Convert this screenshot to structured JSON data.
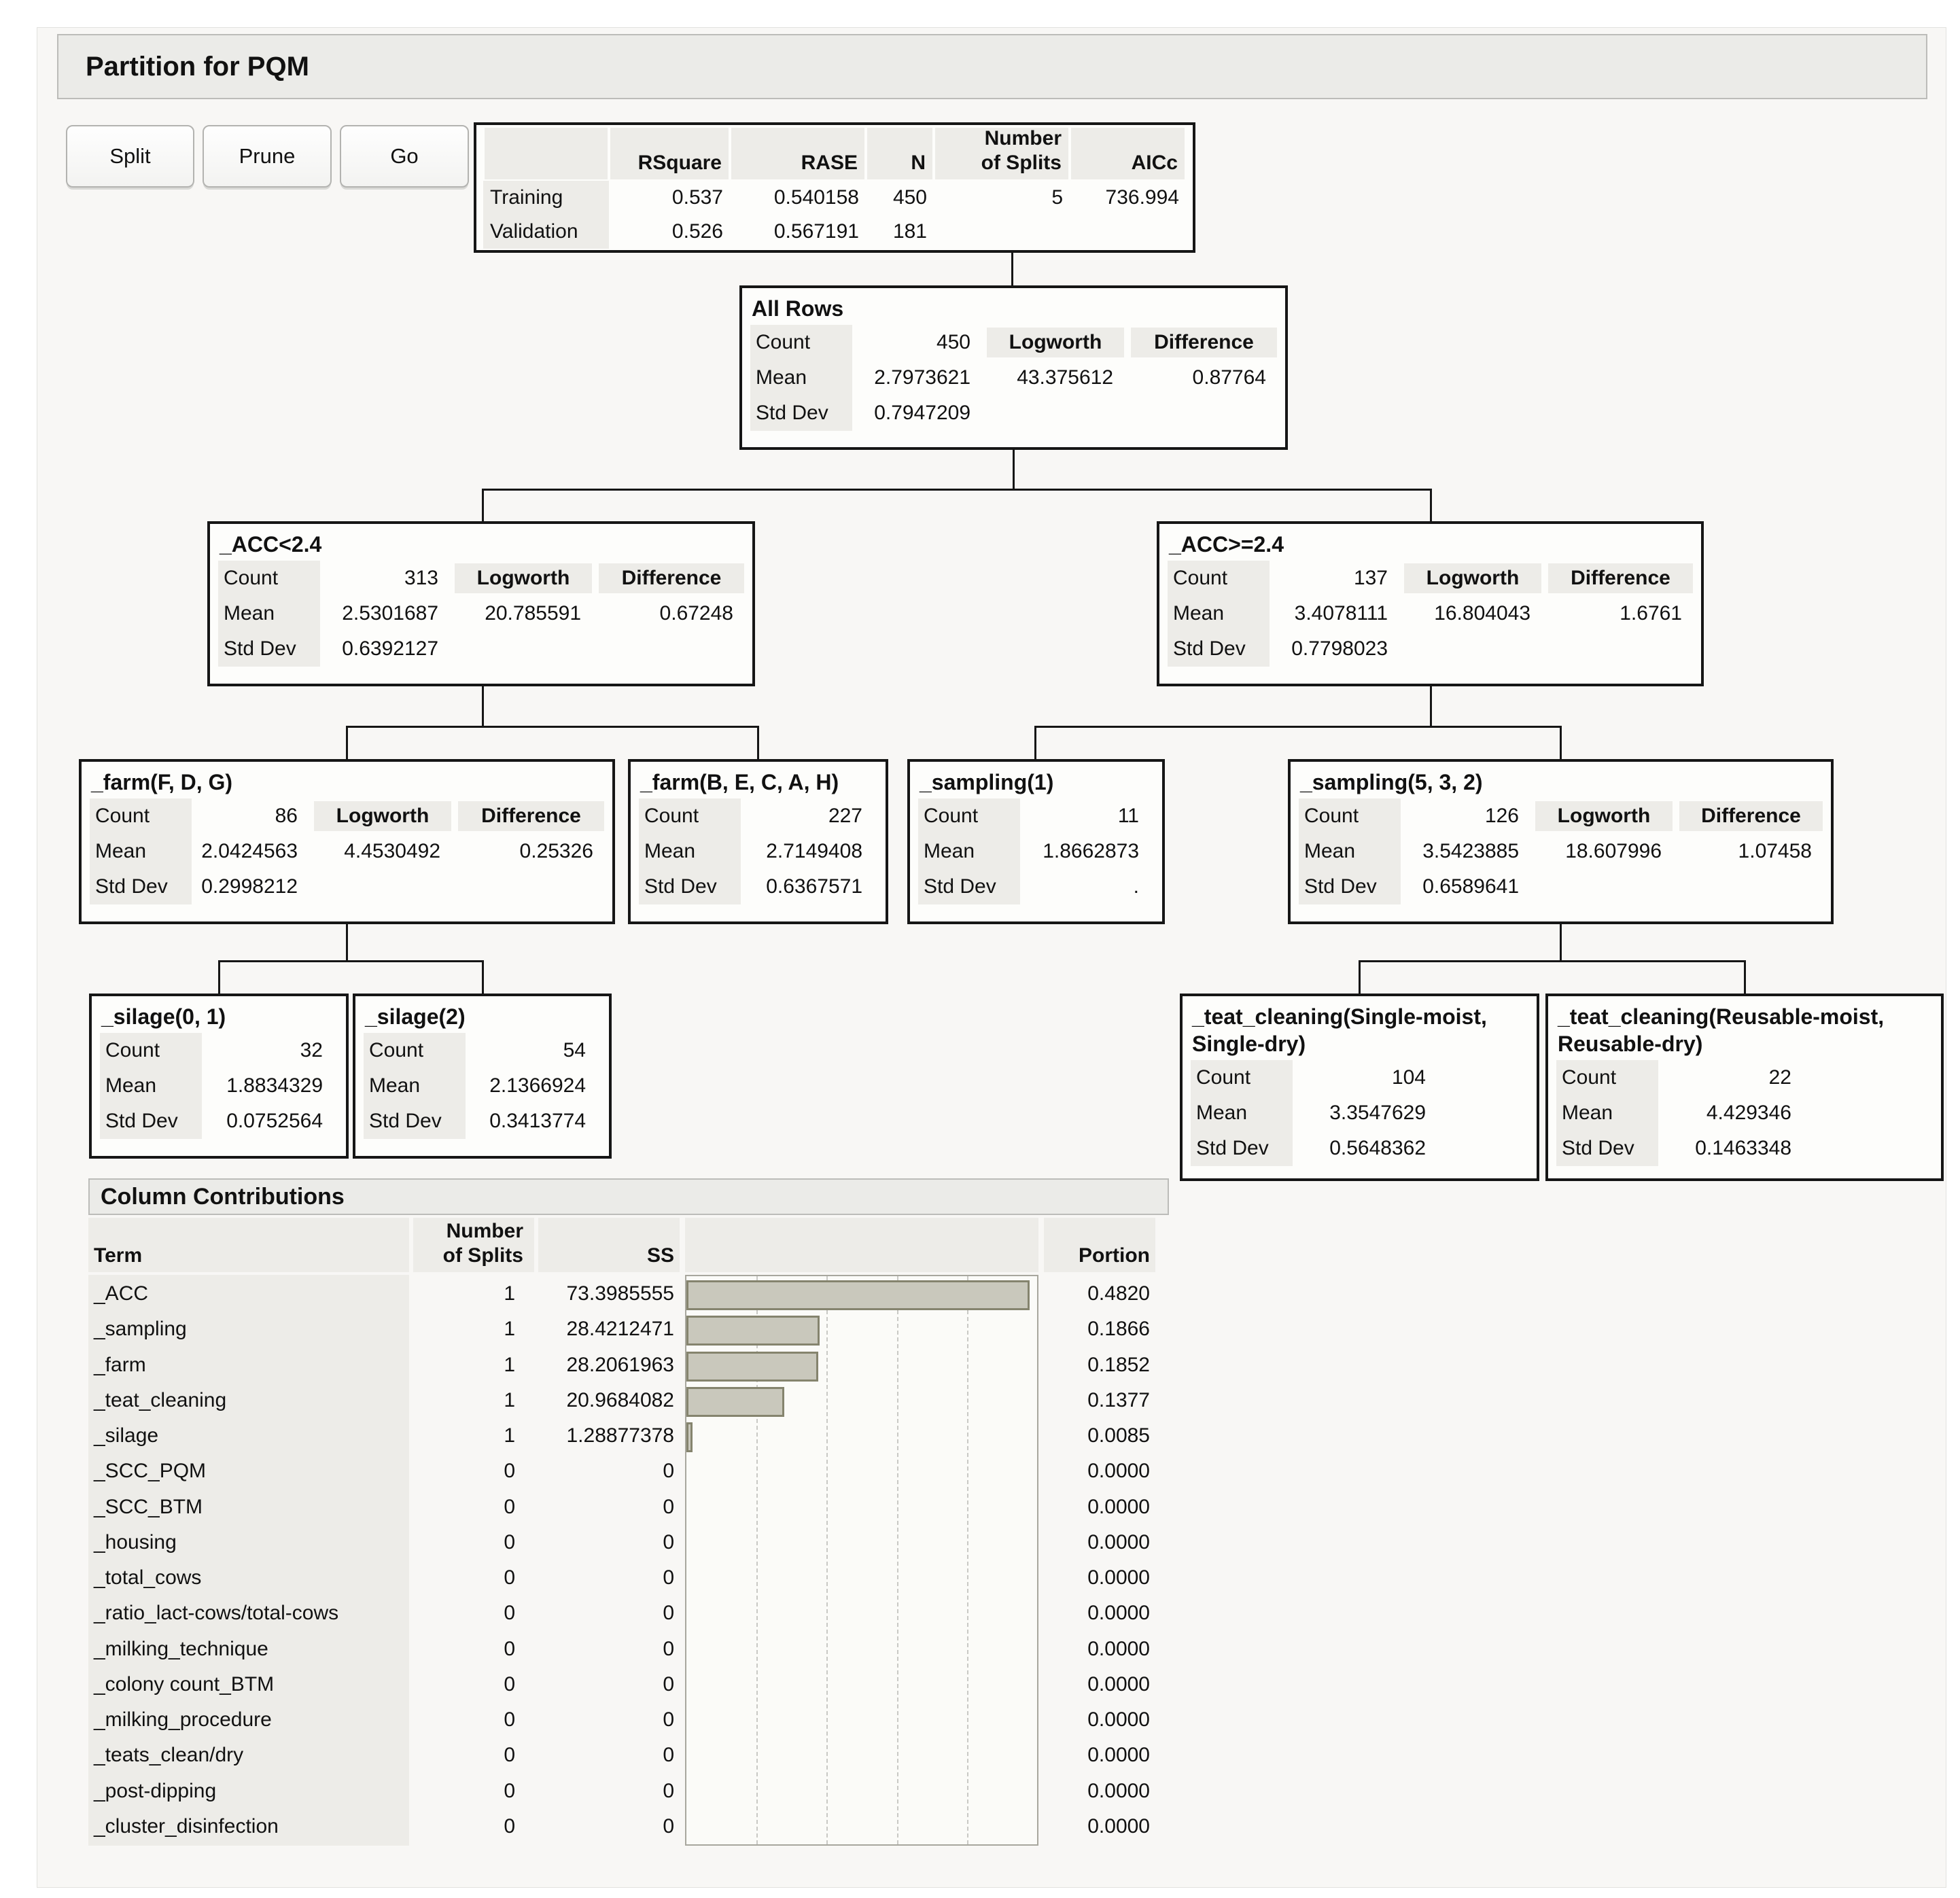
{
  "panel_title": "Partition for PQM",
  "toolbar": {
    "split": "Split",
    "prune": "Prune",
    "go": "Go"
  },
  "summary": {
    "headers": {
      "rsquare": "RSquare",
      "rase": "RASE",
      "n": "N",
      "splits_line1": "Number",
      "splits_line2": "of Splits",
      "aicc": "AICc"
    },
    "rows": [
      {
        "label": "Training",
        "rsquare": "0.537",
        "rase": "0.540158",
        "n": "450",
        "splits": "5",
        "aicc": "736.994"
      },
      {
        "label": "Validation",
        "rsquare": "0.526",
        "rase": "0.567191",
        "n": "181",
        "splits": "",
        "aicc": ""
      }
    ]
  },
  "tree": {
    "stat_labels": {
      "count": "Count",
      "mean": "Mean",
      "stddev": "Std Dev",
      "logworth": "Logworth",
      "difference": "Difference"
    },
    "nodes": [
      {
        "title": "All Rows",
        "count": "450",
        "mean": "2.7973621",
        "stddev": "0.7947209",
        "logworth": "43.375612",
        "difference": "0.87764"
      },
      {
        "title": "_ACC<2.4",
        "count": "313",
        "mean": "2.5301687",
        "stddev": "0.6392127",
        "logworth": "20.785591",
        "difference": "0.67248"
      },
      {
        "title": "_ACC>=2.4",
        "count": "137",
        "mean": "3.4078111",
        "stddev": "0.7798023",
        "logworth": "16.804043",
        "difference": "1.6761"
      },
      {
        "title": "_farm(F, D, G)",
        "count": "86",
        "mean": "2.0424563",
        "stddev": "0.2998212",
        "logworth": "4.4530492",
        "difference": "0.25326"
      },
      {
        "title": "_farm(B, E, C, A, H)",
        "count": "227",
        "mean": "2.7149408",
        "stddev": "0.6367571"
      },
      {
        "title": "_sampling(1)",
        "count": "11",
        "mean": "1.8662873",
        "stddev": "."
      },
      {
        "title": "_sampling(5, 3, 2)",
        "count": "126",
        "mean": "3.5423885",
        "stddev": "0.6589641",
        "logworth": "18.607996",
        "difference": "1.07458"
      },
      {
        "title": "_silage(0, 1)",
        "count": "32",
        "mean": "1.8834329",
        "stddev": "0.0752564"
      },
      {
        "title": "_silage(2)",
        "count": "54",
        "mean": "2.1366924",
        "stddev": "0.3413774"
      },
      {
        "title": "_teat_cleaning(Single-moist, Single-dry)",
        "count": "104",
        "mean": "3.3547629",
        "stddev": "0.5648362"
      },
      {
        "title": "_teat_cleaning(Reusable-moist, Reusable-dry)",
        "count": "22",
        "mean": "4.429346",
        "stddev": "0.1463348"
      }
    ]
  },
  "column_contributions": {
    "section_title": "Column Contributions",
    "headers": {
      "term": "Term",
      "splits_line1": "Number",
      "splits_line2": "of Splits",
      "ss": "SS",
      "portion": "Portion"
    },
    "rows": [
      {
        "term": "_ACC",
        "splits": "1",
        "ss": "73.3985555",
        "portion": "0.4820"
      },
      {
        "term": "_sampling",
        "splits": "1",
        "ss": "28.4212471",
        "portion": "0.1866"
      },
      {
        "term": "_farm",
        "splits": "1",
        "ss": "28.2061963",
        "portion": "0.1852"
      },
      {
        "term": "_teat_cleaning",
        "splits": "1",
        "ss": "20.9684082",
        "portion": "0.1377"
      },
      {
        "term": "_silage",
        "splits": "1",
        "ss": "1.28877378",
        "portion": "0.0085"
      },
      {
        "term": "_SCC_PQM",
        "splits": "0",
        "ss": "0",
        "portion": "0.0000"
      },
      {
        "term": "_SCC_BTM",
        "splits": "0",
        "ss": "0",
        "portion": "0.0000"
      },
      {
        "term": "_housing",
        "splits": "0",
        "ss": "0",
        "portion": "0.0000"
      },
      {
        "term": "_total_cows",
        "splits": "0",
        "ss": "0",
        "portion": "0.0000"
      },
      {
        "term": "_ratio_lact-cows/total-cows",
        "splits": "0",
        "ss": "0",
        "portion": "0.0000"
      },
      {
        "term": "_milking_technique",
        "splits": "0",
        "ss": "0",
        "portion": "0.0000"
      },
      {
        "term": "_colony count_BTM",
        "splits": "0",
        "ss": "0",
        "portion": "0.0000"
      },
      {
        "term": "_milking_procedure",
        "splits": "0",
        "ss": "0",
        "portion": "0.0000"
      },
      {
        "term": "_teats_clean/dry",
        "splits": "0",
        "ss": "0",
        "portion": "0.0000"
      },
      {
        "term": "_post-dipping",
        "splits": "0",
        "ss": "0",
        "portion": "0.0000"
      },
      {
        "term": "_cluster_disinfection",
        "splits": "0",
        "ss": "0",
        "portion": "0.0000"
      }
    ]
  },
  "chart_data": {
    "type": "bar",
    "orientation": "horizontal",
    "title": "Column Contributions",
    "xlabel": "SS",
    "categories": [
      "_ACC",
      "_sampling",
      "_farm",
      "_teat_cleaning",
      "_silage",
      "_SCC_PQM",
      "_SCC_BTM",
      "_housing",
      "_total_cows",
      "_ratio_lact-cows/total-cows",
      "_milking_technique",
      "_colony count_BTM",
      "_milking_procedure",
      "_teats_clean/dry",
      "_post-dipping",
      "_cluster_disinfection"
    ],
    "series": [
      {
        "name": "SS",
        "values": [
          73.3985555,
          28.4212471,
          28.2061963,
          20.9684082,
          1.28877378,
          0,
          0,
          0,
          0,
          0,
          0,
          0,
          0,
          0,
          0,
          0
        ]
      },
      {
        "name": "Portion",
        "values": [
          0.482,
          0.1866,
          0.1852,
          0.1377,
          0.0085,
          0,
          0,
          0,
          0,
          0,
          0,
          0,
          0,
          0,
          0,
          0
        ]
      }
    ],
    "xlim": [
      0,
      75
    ],
    "grid": "dashed vertical lines at 15, 30, 45, 60",
    "legend": "none"
  },
  "colors": {
    "bar_fill": "#c9c8bc",
    "bar_border": "#85846e",
    "node_border": "#161616",
    "header_bg": "#edece8",
    "panel_bg": "#f8f7f5"
  }
}
